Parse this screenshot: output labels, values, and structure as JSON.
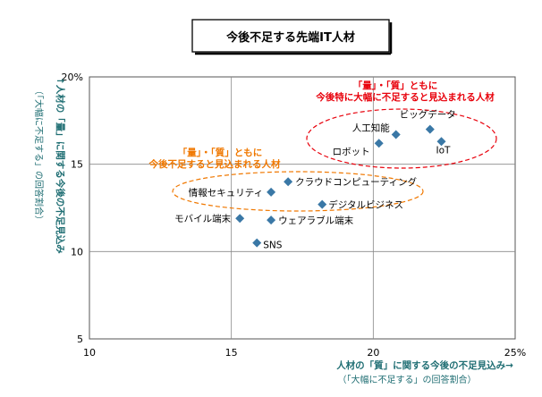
{
  "chart_data": {
    "type": "scatter",
    "title": "今後不足する先端IT人材",
    "xlim": [
      10,
      25
    ],
    "ylim": [
      5,
      20
    ],
    "x_ticks": [
      "10",
      "15",
      "20",
      "25%"
    ],
    "y_ticks": [
      "5",
      "10",
      "15",
      "20%"
    ],
    "xlabel": "人材の「質」に関する今後の不足見込み→",
    "xlabel_note": "（「大幅に不足する」の回答割合）",
    "ylabel": "↑人材の「量」に関する今後の不足見込み",
    "ylabel_note": "（「大幅に不足する」の回答割合）",
    "grid": true,
    "marker_color": "#3a78a6",
    "points": [
      {
        "label": "ビッグデータ",
        "x": 22.0,
        "y": 17.0
      },
      {
        "label": "人工知能",
        "x": 20.8,
        "y": 16.7
      },
      {
        "label": "ロボット",
        "x": 20.2,
        "y": 16.2
      },
      {
        "label": "IoT",
        "x": 22.4,
        "y": 16.3
      },
      {
        "label": "クラウドコンピューティング",
        "x": 17.0,
        "y": 14.0
      },
      {
        "label": "情報セキュリティ",
        "x": 16.4,
        "y": 13.4
      },
      {
        "label": "デジタルビジネス",
        "x": 18.2,
        "y": 12.7
      },
      {
        "label": "モバイル端末",
        "x": 15.3,
        "y": 11.9
      },
      {
        "label": "ウェアラブル端末",
        "x": 16.4,
        "y": 11.8
      },
      {
        "label": "SNS",
        "x": 15.9,
        "y": 10.5
      }
    ],
    "annotations": [
      {
        "line1": "「量」・「質」ともに",
        "line2": "今後特に大幅に不足すると見込まれる人材",
        "color": "#e8000b"
      },
      {
        "line1": "「量」・「質」ともに",
        "line2": "今後不足すると見込まれる人材",
        "color": "#f07800"
      }
    ]
  }
}
